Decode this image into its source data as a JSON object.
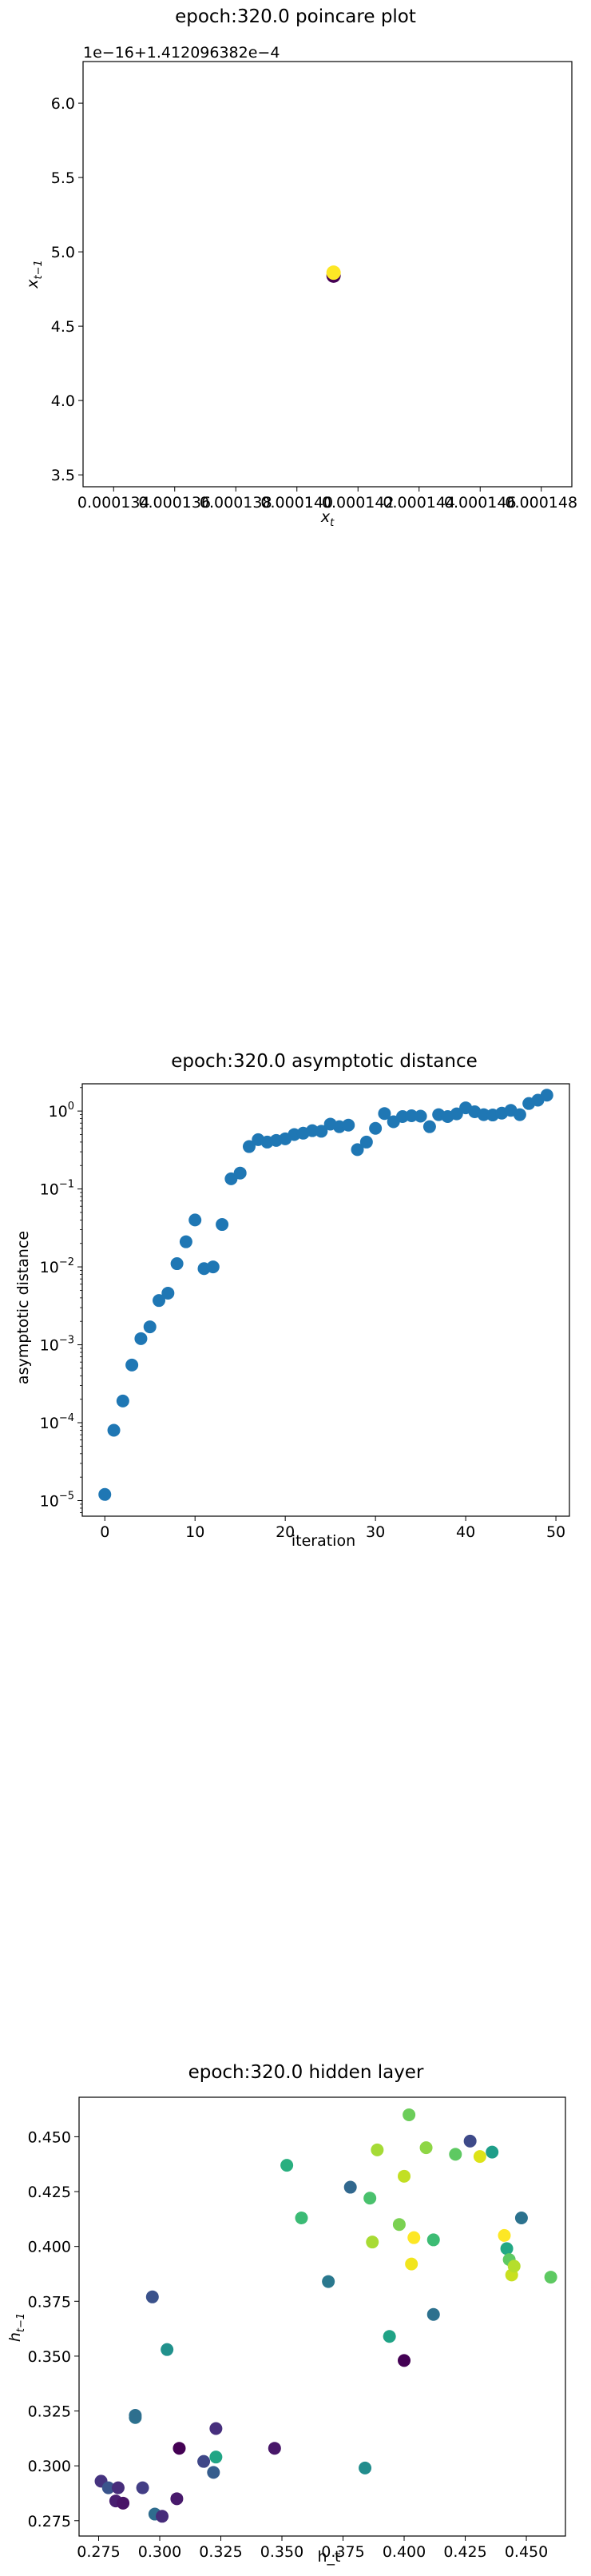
{
  "chart_data": [
    {
      "type": "scatter",
      "title": "epoch:320.0 poincare plot",
      "xlabel": "x_t",
      "ylabel": "x_{t-1}",
      "offset_text": "1e−16+1.412096382e−4",
      "xlim": [
        0.000133,
        0.000149
      ],
      "ylim": [
        3.42,
        6.28
      ],
      "xticks": [
        0.000134,
        0.000136,
        0.000138,
        0.00014,
        0.000142,
        0.000144,
        0.000146,
        0.000148
      ],
      "xtick_labels": [
        "0.000134",
        "0.000136",
        "0.000138",
        "0.000140",
        "0.000142",
        "0.000144",
        "0.000146",
        "0.000148"
      ],
      "yticks": [
        3.5,
        4.0,
        4.5,
        5.0,
        5.5,
        6.0
      ],
      "ytick_labels": [
        "3.5",
        "4.0",
        "4.5",
        "5.0",
        "5.5",
        "6.0"
      ],
      "points": [
        {
          "x": 0.0001412,
          "y": 4.84,
          "color": "#440154"
        },
        {
          "x": 0.0001412,
          "y": 4.86,
          "color": "#fde725"
        }
      ]
    },
    {
      "type": "scatter",
      "title": "epoch:320.0 asymptotic distance",
      "xlabel": "iteration",
      "ylabel": "asymptotic distance",
      "scale_y": "log",
      "xlim": [
        -2.5,
        51.5
      ],
      "ylim_exp": [
        -5.2,
        0.35
      ],
      "xticks": [
        0,
        10,
        20,
        30,
        40,
        50
      ],
      "yticks_exp": [
        -5,
        -4,
        -3,
        -2,
        -1,
        0
      ],
      "point_color": "#1f77b4",
      "x": [
        0,
        1,
        2,
        3,
        4,
        5,
        6,
        7,
        8,
        9,
        10,
        11,
        12,
        13,
        14,
        15,
        16,
        17,
        18,
        19,
        20,
        21,
        22,
        23,
        24,
        25,
        26,
        27,
        28,
        29,
        30,
        31,
        32,
        33,
        34,
        35,
        36,
        37,
        38,
        39,
        40,
        41,
        42,
        43,
        44,
        45,
        46,
        47,
        48,
        49
      ],
      "y": [
        1.2e-05,
        8e-05,
        0.00019,
        0.00055,
        0.0012,
        0.0017,
        0.0037,
        0.0046,
        0.011,
        0.021,
        0.04,
        0.0095,
        0.01,
        0.035,
        0.135,
        0.16,
        0.35,
        0.43,
        0.4,
        0.42,
        0.44,
        0.5,
        0.52,
        0.56,
        0.55,
        0.68,
        0.63,
        0.66,
        0.32,
        0.4,
        0.6,
        0.93,
        0.73,
        0.85,
        0.87,
        0.86,
        0.63,
        0.9,
        0.85,
        0.92,
        1.1,
        0.98,
        0.9,
        0.89,
        0.94,
        1.02,
        0.9,
        1.25,
        1.38,
        1.6
      ]
    },
    {
      "type": "scatter",
      "title": "epoch:320.0 hidden layer",
      "xlabel": "h_t",
      "ylabel": "h_{t-1}",
      "xlim": [
        0.267,
        0.466
      ],
      "ylim": [
        0.268,
        0.468
      ],
      "xticks": [
        0.275,
        0.3,
        0.325,
        0.35,
        0.375,
        0.4,
        0.425,
        0.45
      ],
      "xtick_labels": [
        "0.275",
        "0.300",
        "0.325",
        "0.350",
        "0.375",
        "0.400",
        "0.425",
        "0.450"
      ],
      "yticks": [
        0.275,
        0.3,
        0.325,
        0.35,
        0.375,
        0.4,
        0.425,
        0.45
      ],
      "ytick_labels": [
        "0.275",
        "0.300",
        "0.325",
        "0.350",
        "0.375",
        "0.400",
        "0.425",
        "0.450"
      ],
      "points": [
        {
          "x": 0.276,
          "y": 0.293,
          "color": "#46337f"
        },
        {
          "x": 0.279,
          "y": 0.29,
          "color": "#3a548c"
        },
        {
          "x": 0.282,
          "y": 0.284,
          "color": "#481f70"
        },
        {
          "x": 0.283,
          "y": 0.29,
          "color": "#472d7b"
        },
        {
          "x": 0.285,
          "y": 0.283,
          "color": "#481467"
        },
        {
          "x": 0.29,
          "y": 0.322,
          "color": "#2c728e"
        },
        {
          "x": 0.29,
          "y": 0.323,
          "color": "#2e6f8e"
        },
        {
          "x": 0.293,
          "y": 0.29,
          "color": "#433e85"
        },
        {
          "x": 0.297,
          "y": 0.377,
          "color": "#3b528b"
        },
        {
          "x": 0.298,
          "y": 0.278,
          "color": "#2f6c8e"
        },
        {
          "x": 0.301,
          "y": 0.277,
          "color": "#472c7a"
        },
        {
          "x": 0.303,
          "y": 0.353,
          "color": "#21918c"
        },
        {
          "x": 0.307,
          "y": 0.285,
          "color": "#481a6c"
        },
        {
          "x": 0.308,
          "y": 0.308,
          "color": "#440154"
        },
        {
          "x": 0.318,
          "y": 0.302,
          "color": "#3f4788"
        },
        {
          "x": 0.322,
          "y": 0.297,
          "color": "#365d8d"
        },
        {
          "x": 0.323,
          "y": 0.304,
          "color": "#21a585"
        },
        {
          "x": 0.323,
          "y": 0.317,
          "color": "#472f7d"
        },
        {
          "x": 0.347,
          "y": 0.308,
          "color": "#481769"
        },
        {
          "x": 0.352,
          "y": 0.437,
          "color": "#29af7f"
        },
        {
          "x": 0.358,
          "y": 0.413,
          "color": "#3bbb75"
        },
        {
          "x": 0.369,
          "y": 0.384,
          "color": "#2a788e"
        },
        {
          "x": 0.378,
          "y": 0.427,
          "color": "#31688e"
        },
        {
          "x": 0.384,
          "y": 0.299,
          "color": "#228d8d"
        },
        {
          "x": 0.386,
          "y": 0.422,
          "color": "#4ac16d"
        },
        {
          "x": 0.387,
          "y": 0.402,
          "color": "#a8db34"
        },
        {
          "x": 0.389,
          "y": 0.444,
          "color": "#a5db36"
        },
        {
          "x": 0.394,
          "y": 0.359,
          "color": "#20a386"
        },
        {
          "x": 0.398,
          "y": 0.41,
          "color": "#7ad151"
        },
        {
          "x": 0.4,
          "y": 0.348,
          "color": "#440154"
        },
        {
          "x": 0.4,
          "y": 0.432,
          "color": "#c2df23"
        },
        {
          "x": 0.402,
          "y": 0.46,
          "color": "#6ccd5a"
        },
        {
          "x": 0.403,
          "y": 0.392,
          "color": "#f1e51d"
        },
        {
          "x": 0.404,
          "y": 0.404,
          "color": "#fde725"
        },
        {
          "x": 0.409,
          "y": 0.445,
          "color": "#8ed645"
        },
        {
          "x": 0.412,
          "y": 0.403,
          "color": "#3dbc74"
        },
        {
          "x": 0.412,
          "y": 0.369,
          "color": "#2d718e"
        },
        {
          "x": 0.421,
          "y": 0.442,
          "color": "#5ec962"
        },
        {
          "x": 0.427,
          "y": 0.448,
          "color": "#3e4a89"
        },
        {
          "x": 0.431,
          "y": 0.441,
          "color": "#dde318"
        },
        {
          "x": 0.436,
          "y": 0.443,
          "color": "#1f9e89"
        },
        {
          "x": 0.441,
          "y": 0.405,
          "color": "#fde725"
        },
        {
          "x": 0.442,
          "y": 0.399,
          "color": "#22a884"
        },
        {
          "x": 0.443,
          "y": 0.394,
          "color": "#5ec962"
        },
        {
          "x": 0.444,
          "y": 0.387,
          "color": "#c8e020"
        },
        {
          "x": 0.445,
          "y": 0.391,
          "color": "#b5de2b"
        },
        {
          "x": 0.448,
          "y": 0.413,
          "color": "#2c728e"
        },
        {
          "x": 0.46,
          "y": 0.386,
          "color": "#5ec962"
        }
      ]
    }
  ]
}
